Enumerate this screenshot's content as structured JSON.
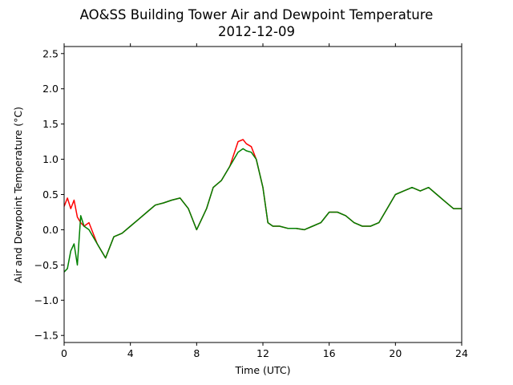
{
  "chart_data": {
    "type": "line",
    "title": "AO&SS Building Tower Air and Dewpoint Temperature",
    "subtitle": "2012-12-09",
    "xlabel": "Time (UTC)",
    "ylabel": "Air and Dewpoint Temperature (°C)",
    "xlim": [
      0,
      24
    ],
    "ylim": [
      -1.6,
      2.6
    ],
    "xticks": [
      0,
      4,
      8,
      12,
      16,
      20,
      24
    ],
    "yticks": [
      -1.5,
      -1.0,
      -0.5,
      0.0,
      0.5,
      1.0,
      1.5,
      2.0,
      2.5
    ],
    "ytick_labels": [
      "−1.5",
      "−1.0",
      "−0.5",
      "0.0",
      "0.5",
      "1.0",
      "1.5",
      "2.0",
      "2.5"
    ],
    "grid": false,
    "legend": "none",
    "series": [
      {
        "color": "#ff0000",
        "x": [
          0.0,
          0.2,
          0.4,
          0.6,
          0.8,
          1.0,
          1.2,
          1.5,
          2.0,
          2.5,
          3.0,
          3.5,
          4.0,
          4.5,
          5.0,
          5.5,
          6.0,
          6.5,
          7.0,
          7.5,
          8.0,
          8.3,
          8.6,
          9.0,
          9.5,
          10.0,
          10.5,
          10.8,
          11.0,
          11.3,
          11.6,
          12.0,
          12.3,
          12.6,
          13.0,
          13.5,
          14.0,
          14.5,
          15.0,
          15.5,
          16.0,
          16.5,
          17.0,
          17.5,
          18.0,
          18.5,
          19.0,
          19.5,
          20.0,
          20.5,
          21.0,
          21.5,
          22.0,
          22.5,
          23.0,
          23.5,
          24.0
        ],
        "y": [
          0.33,
          0.45,
          0.3,
          0.42,
          0.18,
          0.1,
          0.05,
          0.1,
          -0.2,
          -0.4,
          -0.1,
          -0.05,
          0.05,
          0.15,
          0.25,
          0.35,
          0.38,
          0.42,
          0.45,
          0.3,
          0.0,
          0.15,
          0.3,
          0.6,
          0.7,
          0.9,
          1.25,
          1.28,
          1.22,
          1.18,
          1.0,
          0.6,
          0.1,
          0.05,
          0.05,
          0.02,
          0.02,
          0.0,
          0.05,
          0.1,
          0.25,
          0.25,
          0.2,
          0.1,
          0.05,
          0.05,
          0.1,
          0.3,
          0.5,
          0.55,
          0.6,
          0.55,
          0.6,
          0.5,
          0.4,
          0.3,
          0.3
        ]
      },
      {
        "color": "#008000",
        "x": [
          0.0,
          0.2,
          0.4,
          0.6,
          0.8,
          1.0,
          1.2,
          1.5,
          2.0,
          2.5,
          3.0,
          3.5,
          4.0,
          4.5,
          5.0,
          5.5,
          6.0,
          6.5,
          7.0,
          7.5,
          8.0,
          8.3,
          8.6,
          9.0,
          9.5,
          10.0,
          10.5,
          10.8,
          11.0,
          11.3,
          11.6,
          12.0,
          12.3,
          12.6,
          13.0,
          13.5,
          14.0,
          14.5,
          15.0,
          15.5,
          16.0,
          16.5,
          17.0,
          17.5,
          18.0,
          18.5,
          19.0,
          19.5,
          20.0,
          20.5,
          21.0,
          21.5,
          22.0,
          22.5,
          23.0,
          23.5,
          24.0
        ],
        "y": [
          -0.6,
          -0.55,
          -0.3,
          -0.2,
          -0.5,
          0.2,
          0.05,
          0.0,
          -0.2,
          -0.4,
          -0.1,
          -0.05,
          0.05,
          0.15,
          0.25,
          0.35,
          0.38,
          0.42,
          0.45,
          0.3,
          0.0,
          0.15,
          0.3,
          0.6,
          0.7,
          0.9,
          1.1,
          1.15,
          1.12,
          1.1,
          1.0,
          0.6,
          0.1,
          0.05,
          0.05,
          0.02,
          0.02,
          0.0,
          0.05,
          0.1,
          0.25,
          0.25,
          0.2,
          0.1,
          0.05,
          0.05,
          0.1,
          0.3,
          0.5,
          0.55,
          0.6,
          0.55,
          0.6,
          0.5,
          0.4,
          0.3,
          0.3
        ]
      }
    ]
  }
}
